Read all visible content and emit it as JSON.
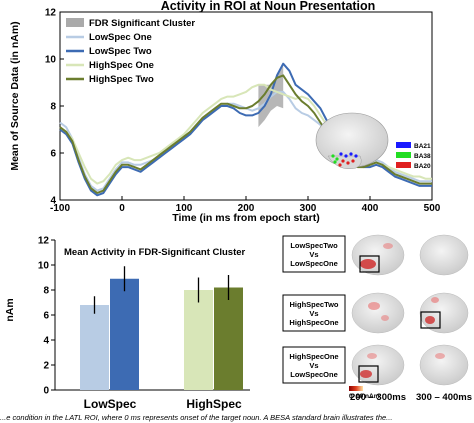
{
  "chart_data": [
    {
      "type": "line",
      "title": "Activity in ROI at Noun Presentation",
      "xlabel": "Time (in ms from epoch start)",
      "ylabel": "Mean of Source Data (in nAm)",
      "xlim": [
        -100,
        500
      ],
      "ylim": [
        4,
        12
      ],
      "xticks": [
        "-100",
        "0",
        "100",
        "200",
        "300",
        "400",
        "500"
      ],
      "yticks": [
        "4",
        "6",
        "8",
        "10",
        "12"
      ],
      "x": [
        -100,
        -90,
        -80,
        -70,
        -60,
        -50,
        -40,
        -30,
        -20,
        -10,
        0,
        10,
        20,
        30,
        40,
        50,
        60,
        70,
        80,
        90,
        100,
        110,
        120,
        130,
        140,
        150,
        160,
        170,
        180,
        190,
        200,
        210,
        220,
        230,
        240,
        250,
        260,
        270,
        280,
        290,
        300,
        310,
        320,
        330,
        340,
        350,
        360,
        370,
        380,
        390,
        400,
        410,
        420,
        430,
        440,
        450,
        460,
        470,
        480,
        490,
        500
      ],
      "significant_cluster": {
        "label": "FDR Significant Cluster",
        "x_range": [
          215,
          260
        ],
        "color": "#aaaaaa"
      },
      "legend_position": "top-left",
      "series": [
        {
          "name": "LowSpec One",
          "color": "#b8cce4",
          "values": [
            7.3,
            7.1,
            6.6,
            5.8,
            5.1,
            4.6,
            4.4,
            4.5,
            4.9,
            5.3,
            5.6,
            5.6,
            5.5,
            5.5,
            5.6,
            5.7,
            5.8,
            6.0,
            6.2,
            6.4,
            6.6,
            6.9,
            7.1,
            7.4,
            7.6,
            7.8,
            8.0,
            8.1,
            8.1,
            8.0,
            7.9,
            7.8,
            7.9,
            8.1,
            8.4,
            8.6,
            8.6,
            8.3,
            7.9,
            7.7,
            7.6,
            7.4,
            7.2,
            6.8,
            6.3,
            5.9,
            5.7,
            5.6,
            5.5,
            5.5,
            5.6,
            5.7,
            5.6,
            5.4,
            5.2,
            5.1,
            5.0,
            4.9,
            4.8,
            4.8,
            4.8
          ]
        },
        {
          "name": "LowSpec Two",
          "color": "#3d6bb3",
          "values": [
            7.0,
            6.8,
            6.4,
            5.6,
            4.9,
            4.4,
            4.2,
            4.3,
            4.7,
            5.1,
            5.4,
            5.4,
            5.3,
            5.2,
            5.4,
            5.6,
            5.8,
            6.0,
            6.2,
            6.4,
            6.6,
            6.8,
            7.1,
            7.4,
            7.6,
            7.8,
            8.0,
            8.0,
            7.9,
            7.7,
            7.6,
            7.6,
            7.7,
            8.0,
            8.5,
            9.3,
            9.8,
            9.5,
            8.9,
            8.7,
            8.5,
            8.2,
            7.9,
            7.4,
            6.8,
            6.2,
            5.8,
            5.6,
            5.5,
            5.4,
            5.4,
            5.5,
            5.4,
            5.2,
            5.0,
            4.9,
            4.8,
            4.7,
            4.6,
            4.6,
            4.6
          ]
        },
        {
          "name": "HighSpec One",
          "color": "#d8e6b8",
          "values": [
            7.1,
            6.9,
            6.6,
            6.0,
            5.4,
            4.9,
            4.7,
            4.8,
            5.1,
            5.5,
            5.7,
            5.8,
            5.7,
            5.7,
            5.8,
            5.9,
            6.0,
            6.2,
            6.4,
            6.6,
            6.8,
            7.1,
            7.4,
            7.7,
            7.9,
            8.1,
            8.3,
            8.4,
            8.4,
            8.5,
            8.6,
            8.8,
            8.9,
            8.9,
            8.7,
            8.6,
            8.5,
            8.4,
            8.3,
            8.4,
            8.3,
            8.0,
            7.6,
            7.2,
            6.8,
            6.4,
            6.0,
            5.8,
            5.6,
            5.5,
            5.5,
            5.6,
            5.5,
            5.4,
            5.3,
            5.2,
            5.1,
            5.0,
            5.0,
            4.9,
            4.9
          ]
        },
        {
          "name": "HighSpec Two",
          "color": "#6b7d2e",
          "values": [
            7.1,
            6.9,
            6.5,
            5.7,
            5.0,
            4.5,
            4.3,
            4.4,
            4.8,
            5.2,
            5.5,
            5.5,
            5.4,
            5.3,
            5.5,
            5.7,
            5.9,
            6.1,
            6.3,
            6.5,
            6.7,
            6.9,
            7.2,
            7.5,
            7.7,
            7.9,
            8.1,
            8.1,
            8.0,
            7.9,
            7.9,
            8.0,
            8.2,
            8.5,
            8.9,
            9.2,
            9.3,
            8.9,
            8.5,
            8.2,
            8.0,
            7.7,
            7.3,
            6.9,
            6.4,
            5.9,
            5.6,
            5.5,
            5.4,
            5.4,
            5.5,
            5.6,
            5.5,
            5.3,
            5.1,
            5.0,
            4.9,
            4.8,
            4.7,
            4.7,
            4.7
          ]
        }
      ]
    },
    {
      "type": "bar",
      "title": "Mean Activity in FDR-Significant Cluster",
      "xlabel": "",
      "ylabel": "nAm",
      "ylim": [
        0,
        12
      ],
      "yticks": [
        "0",
        "2",
        "4",
        "6",
        "8",
        "10",
        "12"
      ],
      "categories": [
        "LowSpec",
        "HighSpec"
      ],
      "bars": [
        {
          "category": "LowSpec",
          "color": "#b8cce4",
          "value": 6.8,
          "error": 0.7
        },
        {
          "category": "LowSpec",
          "color": "#3d6bb3",
          "value": 8.9,
          "error": 1.0
        },
        {
          "category": "HighSpec",
          "color": "#d8e6b8",
          "value": 8.0,
          "error": 1.0
        },
        {
          "category": "HighSpec",
          "color": "#6b7d2e",
          "value": 8.2,
          "error": 1.0
        }
      ]
    }
  ],
  "inset_legend": {
    "items": [
      {
        "label": "BA21",
        "color": "#1a1aff"
      },
      {
        "label": "BA38",
        "color": "#22dd22"
      },
      {
        "label": "BA20",
        "color": "#e02020"
      }
    ]
  },
  "comparisons": [
    {
      "line1": "LowSpecTwo",
      "line2": "Vs",
      "line3": "LowSpecOne"
    },
    {
      "line1": "HighSpecTwo",
      "line2": "Vs",
      "line3": "HighSpecOne"
    },
    {
      "line1": "HighSpecOne",
      "line2": "Vs",
      "line3": "LowSpecOne"
    }
  ],
  "colorbar": {
    "min_label": "0",
    "max_label": "10 nAm"
  },
  "time_windows": [
    "200 – 300ms",
    "300 – 400ms"
  ],
  "caption": "...e condition in the LATL ROI, where 0 ms represents onset of the target noun. A BESA standard brain illustrates the..."
}
